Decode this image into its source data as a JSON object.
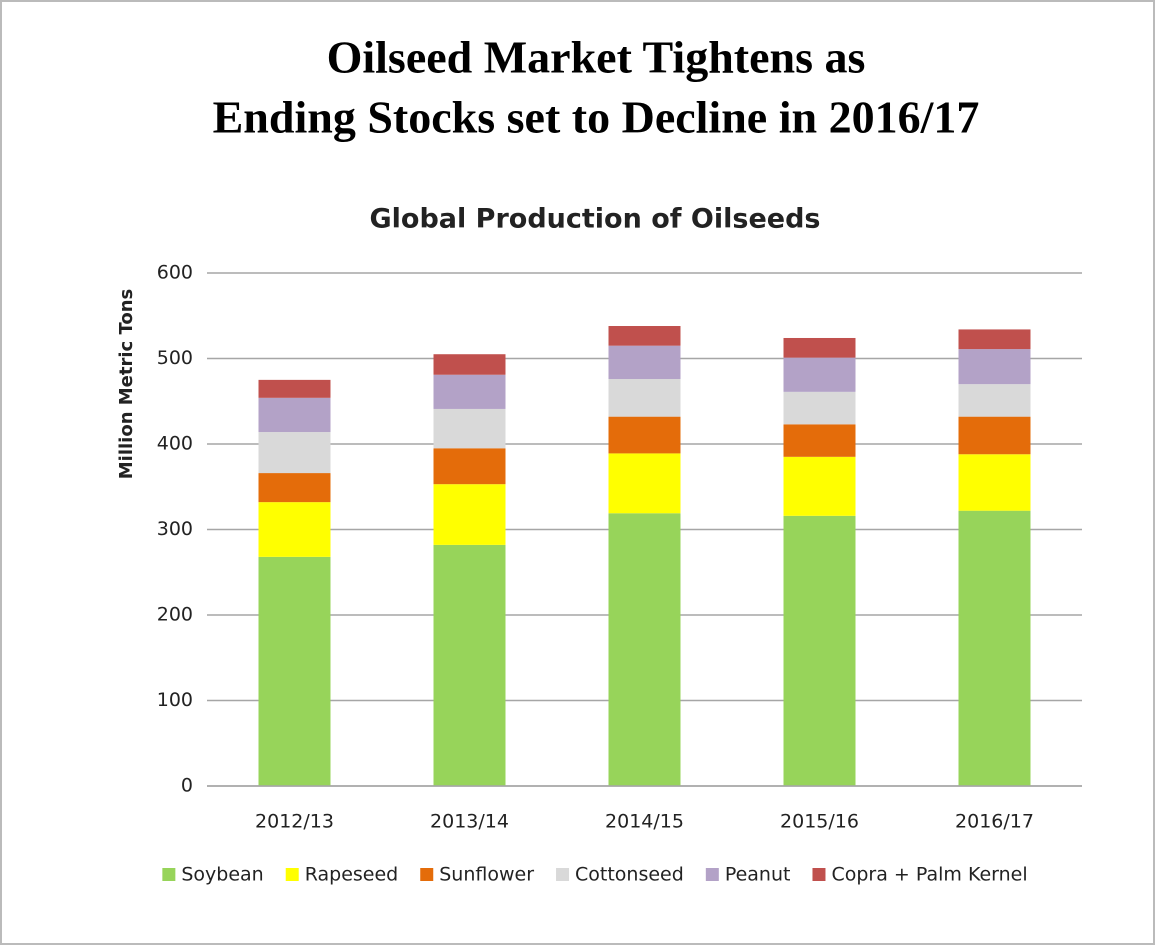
{
  "heading": {
    "lines": [
      "Oilseed Market Tightens as",
      "Ending Stocks set to Decline in 2016/17"
    ]
  },
  "chart_data": {
    "type": "stacked_bar",
    "title": "Global Production of Oilseeds",
    "ylabel": "Million Metric Tons",
    "categories": [
      "2012/13",
      "2013/14",
      "2014/15",
      "2015/16",
      "2016/17"
    ],
    "series": [
      {
        "name": "Soybean",
        "color": "#97d45a",
        "values": [
          268,
          282,
          319,
          316,
          322
        ]
      },
      {
        "name": "Rapeseed",
        "color": "#ffff00",
        "values": [
          64,
          71,
          70,
          69,
          66
        ]
      },
      {
        "name": "Sunflower",
        "color": "#e46c0a",
        "values": [
          34,
          42,
          43,
          38,
          44
        ]
      },
      {
        "name": "Cottonseed",
        "color": "#d9d9d9",
        "values": [
          48,
          46,
          44,
          38,
          38
        ]
      },
      {
        "name": "Peanut",
        "color": "#b3a2c7",
        "values": [
          40,
          40,
          39,
          40,
          41
        ]
      },
      {
        "name": "Copra + Palm Kernel",
        "color": "#c0504d",
        "values": [
          21,
          24,
          23,
          23,
          23
        ]
      }
    ],
    "ylim": [
      0,
      600
    ],
    "yticks": [
      0,
      100,
      200,
      300,
      400,
      500,
      600
    ],
    "grid": true,
    "legend": "bottom"
  }
}
